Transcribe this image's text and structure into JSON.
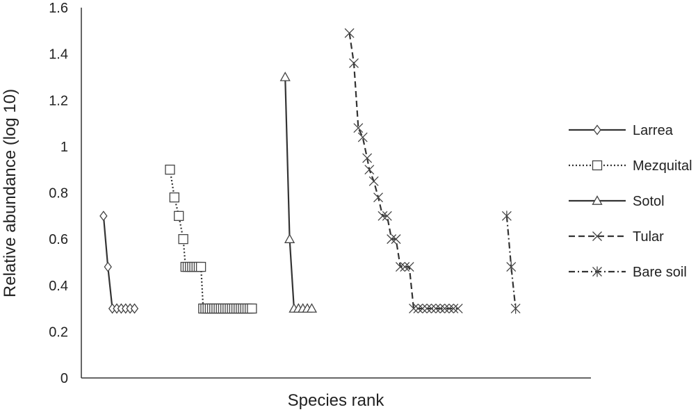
{
  "chart_data": {
    "type": "line",
    "title": "",
    "xlabel": "Species rank",
    "ylabel": "Relative abundance (log 10)",
    "ylim": [
      0,
      1.6
    ],
    "yticks": [
      "0",
      "0.2",
      "0.4",
      "0.6",
      "0.8",
      "1",
      "1.2",
      "1.4",
      "1.6"
    ],
    "grid": false,
    "legend_position": "right",
    "series": [
      {
        "name": "Larrea",
        "marker": "diamond",
        "line_style": "solid",
        "x": [
          1,
          1.2,
          1.4,
          1.6,
          1.8,
          2.0,
          2.2,
          2.4
        ],
        "y": [
          0.7,
          0.48,
          0.3,
          0.3,
          0.3,
          0.3,
          0.3,
          0.3
        ]
      },
      {
        "name": "Mezquital",
        "marker": "square",
        "line_style": "dotted",
        "x": [
          4,
          4.2,
          4.4,
          4.6,
          4.7,
          4.8,
          4.9,
          5.0,
          5.1,
          5.2,
          5.3,
          5.4,
          5.5,
          5.6,
          5.7,
          5.8,
          5.9,
          6.0,
          6.1,
          6.2,
          6.3,
          6.4,
          6.5,
          6.6,
          6.7,
          6.8,
          6.9,
          7.0,
          7.1,
          7.2,
          7.3,
          7.4,
          7.5,
          7.6,
          7.7
        ],
        "y": [
          0.9,
          0.78,
          0.7,
          0.6,
          0.48,
          0.48,
          0.48,
          0.48,
          0.48,
          0.48,
          0.48,
          0.48,
          0.3,
          0.3,
          0.3,
          0.3,
          0.3,
          0.3,
          0.3,
          0.3,
          0.3,
          0.3,
          0.3,
          0.3,
          0.3,
          0.3,
          0.3,
          0.3,
          0.3,
          0.3,
          0.3,
          0.3,
          0.3,
          0.3,
          0.3
        ]
      },
      {
        "name": "Sotol",
        "marker": "triangle",
        "line_style": "solid",
        "x": [
          9.2,
          9.4,
          9.6,
          9.8,
          10.0,
          10.2,
          10.4
        ],
        "y": [
          1.3,
          0.6,
          0.3,
          0.3,
          0.3,
          0.3,
          0.3
        ]
      },
      {
        "name": "Tular",
        "marker": "x",
        "line_style": "dashed",
        "x": [
          12.1,
          12.3,
          12.5,
          12.7,
          12.9,
          13.0,
          13.2,
          13.4,
          13.6,
          13.8,
          14.0,
          14.2,
          14.4,
          14.6,
          14.8,
          15.0,
          15.2,
          15.4,
          15.6,
          15.8,
          16.0,
          16.2,
          16.4,
          16.6,
          16.8,
          17.0
        ],
        "y": [
          1.49,
          1.36,
          1.08,
          1.04,
          0.95,
          0.9,
          0.85,
          0.78,
          0.7,
          0.7,
          0.6,
          0.6,
          0.48,
          0.48,
          0.48,
          0.3,
          0.3,
          0.3,
          0.3,
          0.3,
          0.3,
          0.3,
          0.3,
          0.3,
          0.3,
          0.3
        ]
      },
      {
        "name": "Bare soil",
        "marker": "asterisk",
        "line_style": "dash-dot",
        "x": [
          19.2,
          19.4,
          19.6
        ],
        "y": [
          0.7,
          0.48,
          0.3
        ]
      }
    ]
  }
}
